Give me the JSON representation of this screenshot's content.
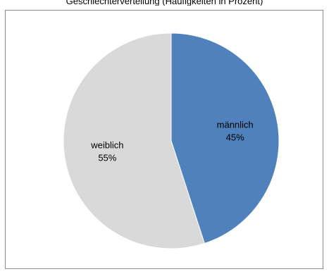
{
  "header": {
    "caption": "Geschlechterverteilung (Häufigkeiten in Prozent)"
  },
  "chart_data": {
    "type": "pie",
    "title": "",
    "start_angle_deg": 0,
    "direction": "clockwise",
    "slices": [
      {
        "label": "männlich",
        "value": 45,
        "value_label": "45%",
        "color": "#4f81bd"
      },
      {
        "label": "weiblich",
        "value": 55,
        "value_label": "55%",
        "color": "#d9d9d9"
      }
    ],
    "legend": "none"
  }
}
